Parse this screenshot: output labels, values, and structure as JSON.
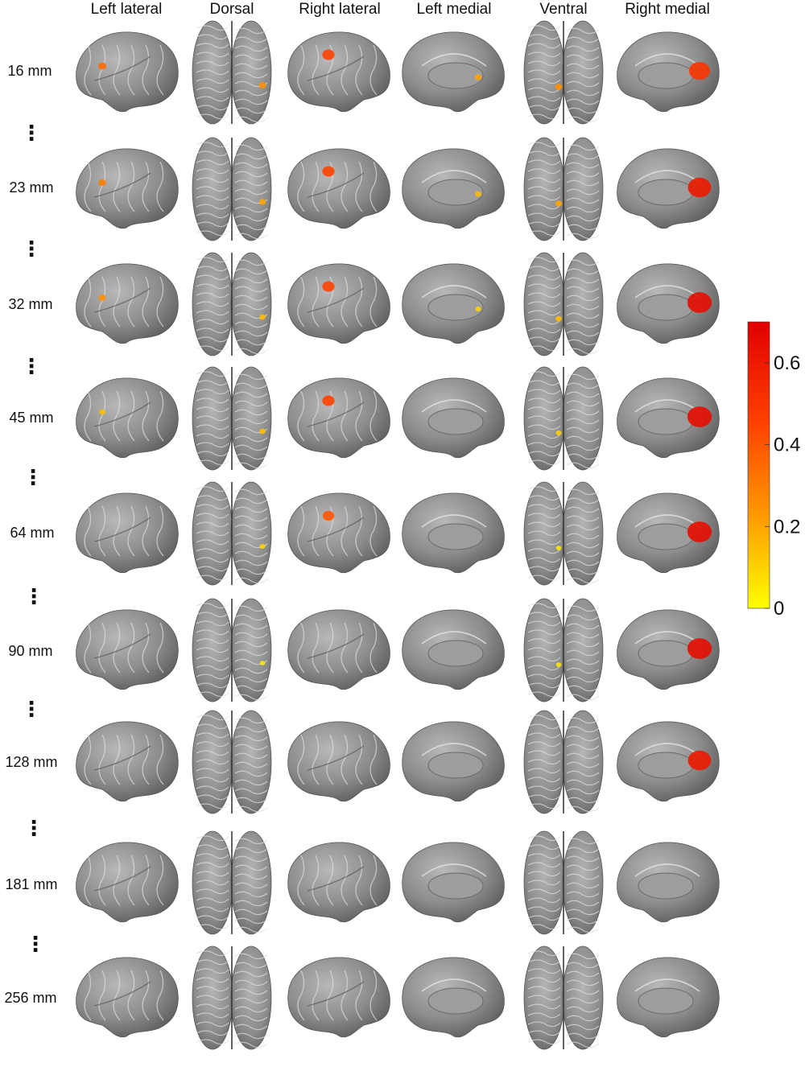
{
  "columns": [
    "Left lateral",
    "Dorsal",
    "Right lateral",
    "Left medial",
    "Ventral",
    "Right medial"
  ],
  "rows": [
    "16 mm",
    "23 mm",
    "32 mm",
    "45 mm",
    "64 mm",
    "90 mm",
    "128 mm",
    "181 mm",
    "256 mm"
  ],
  "row_separator": "⋮",
  "colorbar": {
    "ticks": [
      "0",
      "0.2",
      "0.4",
      "0.6"
    ],
    "tick_values": [
      0,
      0.2,
      0.4,
      0.6
    ],
    "max": 0.7,
    "colors": [
      "#ffff00",
      "#ffa000",
      "#ff4000",
      "#e00000"
    ]
  },
  "surface_color": "#8a8a8a",
  "activation_rows": [
    {
      "label": "16 mm",
      "activation": [
        0.35,
        0.25,
        0.45,
        0.2,
        0.25,
        0.5
      ]
    },
    {
      "label": "23 mm",
      "activation": [
        0.3,
        0.2,
        0.45,
        0.15,
        0.2,
        0.6
      ]
    },
    {
      "label": "32 mm",
      "activation": [
        0.25,
        0.15,
        0.45,
        0.1,
        0.15,
        0.65
      ]
    },
    {
      "label": "45 mm",
      "activation": [
        0.15,
        0.15,
        0.45,
        0.0,
        0.1,
        0.65
      ]
    },
    {
      "label": "64 mm",
      "activation": [
        0.0,
        0.1,
        0.4,
        0.0,
        0.05,
        0.65
      ]
    },
    {
      "label": "90 mm",
      "activation": [
        0.0,
        0.05,
        0.0,
        0.0,
        0.05,
        0.65
      ]
    },
    {
      "label": "128 mm",
      "activation": [
        0.0,
        0.0,
        0.0,
        0.0,
        0.0,
        0.6
      ]
    },
    {
      "label": "181 mm",
      "activation": [
        0.0,
        0.0,
        0.0,
        0.0,
        0.0,
        0.0
      ]
    },
    {
      "label": "256 mm",
      "activation": [
        0.0,
        0.0,
        0.0,
        0.0,
        0.0,
        0.0
      ]
    }
  ]
}
